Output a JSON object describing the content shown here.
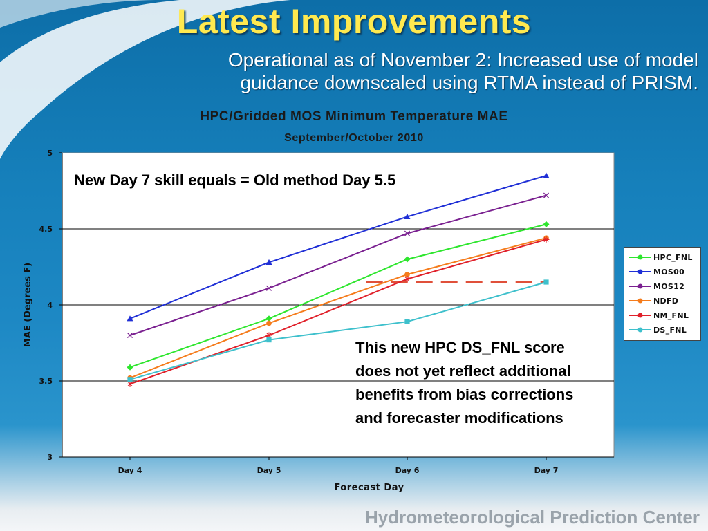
{
  "slide": {
    "title": "Latest Improvements",
    "subtitle_line1": "Operational as of November 2: Increased use of model",
    "subtitle_line2": "guidance downscaled using RTMA instead of PRISM.",
    "footer": "Hydrometeorological Prediction Center"
  },
  "annotations": {
    "top": "New Day 7 skill equals = Old method Day 5.5",
    "bottom": "This new HPC DS_FNL score does not yet reflect additional benefits from bias corrections and forecaster modifications"
  },
  "chart_data": {
    "type": "line",
    "title": "HPC/Gridded MOS Minimum Temperature MAE",
    "subtitle": "September/October 2010",
    "xlabel": "Forecast Day",
    "ylabel": "MAE (Degrees F)",
    "categories": [
      "Day 4",
      "Day 5",
      "Day 6",
      "Day 7"
    ],
    "ylim": [
      3,
      5
    ],
    "yticks": [
      "3",
      "3.5",
      "4",
      "4.5",
      "5"
    ],
    "grid": true,
    "legend_position": "right",
    "series": [
      {
        "name": "HPC_FNL",
        "color": "#2ee62e",
        "marker": "diamond",
        "values": [
          3.59,
          3.91,
          4.3,
          4.53
        ]
      },
      {
        "name": "MOS00",
        "color": "#1f2fd6",
        "marker": "triangle",
        "values": [
          3.91,
          4.28,
          4.58,
          4.85
        ]
      },
      {
        "name": "MOS12",
        "color": "#7a2090",
        "marker": "x",
        "values": [
          3.8,
          4.11,
          4.47,
          4.72
        ]
      },
      {
        "name": "NDFD",
        "color": "#f57c1c",
        "marker": "circle",
        "values": [
          3.52,
          3.88,
          4.2,
          4.44
        ]
      },
      {
        "name": "NM_FNL",
        "color": "#e0202a",
        "marker": "star",
        "values": [
          3.48,
          3.8,
          4.17,
          4.43
        ]
      },
      {
        "name": "DS_FNL",
        "color": "#3ec0cc",
        "marker": "square",
        "values": [
          3.51,
          3.77,
          3.89,
          4.15
        ]
      }
    ],
    "reference_line": {
      "y": 4.15,
      "from_x": 5.7,
      "to_x": 7,
      "color": "#e0503a",
      "style": "dashed"
    }
  }
}
